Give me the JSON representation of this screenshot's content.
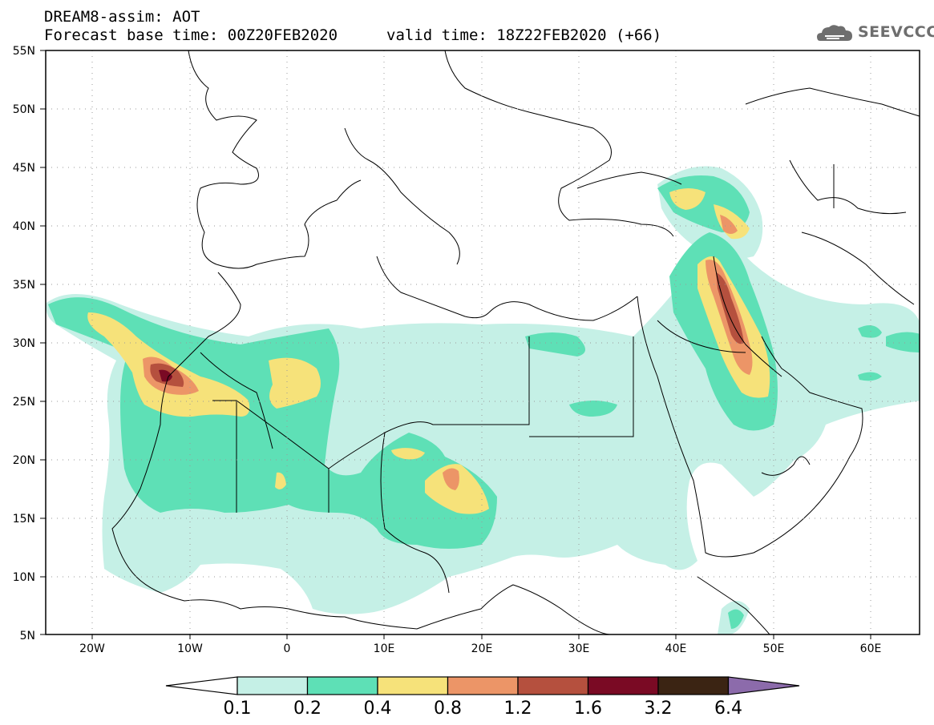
{
  "header": {
    "line1": "DREAM8-assim: AOT",
    "line2a": "Forecast base time: 00Z20FEB2020",
    "line2b": "valid time: 18Z22FEB2020 (+66)"
  },
  "logo": {
    "name": "cloud-icon",
    "text": "SEEVCCC"
  },
  "map": {
    "lon_range": [
      -25,
      65
    ],
    "lat_range": [
      5,
      55
    ],
    "lat_ticks": [
      "55N",
      "50N",
      "45N",
      "40N",
      "35N",
      "30N",
      "25N",
      "20N",
      "15N",
      "10N",
      "5N"
    ],
    "lon_ticks": [
      "20W",
      "10W",
      "0",
      "10E",
      "20E",
      "30E",
      "40E",
      "50E",
      "60E"
    ],
    "gridlines": "dotted"
  },
  "colorbar": {
    "labels": [
      "0.1",
      "0.2",
      "0.4",
      "0.8",
      "1.2",
      "1.6",
      "3.2",
      "6.4"
    ],
    "colors": [
      "#ffffff",
      "#c5f0e6",
      "#5ee0b6",
      "#f6e27a",
      "#ec9567",
      "#b5503e",
      "#7a0a24",
      "#3b2413",
      "#8c6bab"
    ]
  }
}
